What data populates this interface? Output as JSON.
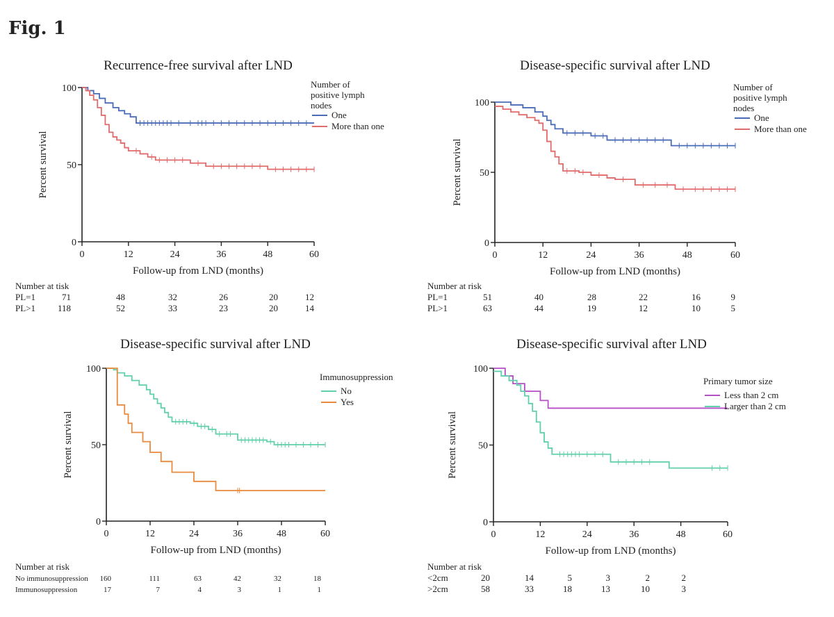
{
  "figure_label": "Fig. 1",
  "chart_data": [
    {
      "type": "line",
      "subtype": "kaplan-meier step",
      "title": "Recurrence-free survival after LND",
      "xlabel": "Follow-up from LND (months)",
      "ylabel": "Percent survival",
      "xlim": [
        0,
        60
      ],
      "ylim": [
        0,
        100
      ],
      "xticks": [
        0,
        12,
        24,
        36,
        48,
        60
      ],
      "yticks": [
        0,
        50,
        100
      ],
      "grid": false,
      "legend": {
        "title": "Number of positive lymph nodes",
        "position": "right"
      },
      "series": [
        {
          "name": "One",
          "color": "#4a6cb8",
          "steps": [
            [
              0,
              100
            ],
            [
              1.5,
              98
            ],
            [
              3,
              96
            ],
            [
              4.5,
              93
            ],
            [
              6,
              90
            ],
            [
              8,
              87
            ],
            [
              9.5,
              85
            ],
            [
              11,
              83
            ],
            [
              12.5,
              81
            ],
            [
              14,
              77
            ],
            [
              60,
              77
            ]
          ],
          "censored": [
            15,
            16,
            17,
            18,
            19,
            20,
            21,
            22,
            23,
            25,
            28,
            30,
            31,
            32,
            34,
            36,
            38,
            40,
            42,
            44,
            46,
            48,
            50,
            52,
            54,
            56,
            58
          ]
        },
        {
          "name": "More than one",
          "color": "#e26a6a",
          "steps": [
            [
              0,
              100
            ],
            [
              1,
              98
            ],
            [
              2,
              95
            ],
            [
              3,
              92
            ],
            [
              4,
              87
            ],
            [
              5,
              82
            ],
            [
              6,
              76
            ],
            [
              7,
              71
            ],
            [
              8,
              68
            ],
            [
              9,
              66
            ],
            [
              10,
              64
            ],
            [
              11,
              61
            ],
            [
              12,
              59
            ],
            [
              15,
              57
            ],
            [
              17,
              55
            ],
            [
              19,
              53
            ],
            [
              28,
              51
            ],
            [
              32,
              49
            ],
            [
              48,
              47
            ],
            [
              60,
              47
            ]
          ],
          "censored": [
            14,
            18,
            20,
            22,
            24,
            26,
            30,
            34,
            36,
            38,
            40,
            42,
            44,
            46,
            50,
            52,
            54,
            56,
            58,
            60
          ]
        }
      ],
      "risk_table": {
        "heading": "Number at tisk",
        "rows": [
          {
            "label": "PL=1",
            "values": [
              "71",
              "48",
              "32",
              "26",
              "20",
              "12"
            ]
          },
          {
            "label": "PL>1",
            "values": [
              "118",
              "52",
              "33",
              "23",
              "20",
              "14"
            ]
          }
        ]
      }
    },
    {
      "type": "line",
      "subtype": "kaplan-meier step",
      "title": "Disease-specific survival after LND",
      "xlabel": "Follow-up from LND (months)",
      "ylabel": "Percent survival",
      "xlim": [
        0,
        60
      ],
      "ylim": [
        0,
        100
      ],
      "xticks": [
        0,
        12,
        24,
        36,
        48,
        60
      ],
      "yticks": [
        0,
        50,
        100
      ],
      "grid": false,
      "legend": {
        "title": "Number of positive lymph nodes",
        "position": "right"
      },
      "series": [
        {
          "name": "One",
          "color": "#4a6cb8",
          "steps": [
            [
              0,
              100
            ],
            [
              4,
              98
            ],
            [
              7,
              96
            ],
            [
              10,
              93
            ],
            [
              12,
              90
            ],
            [
              13,
              87
            ],
            [
              14,
              84
            ],
            [
              15,
              81
            ],
            [
              17,
              78
            ],
            [
              24,
              76
            ],
            [
              28,
              73
            ],
            [
              44,
              69
            ],
            [
              60,
              69
            ]
          ],
          "censored": [
            18,
            20,
            22,
            25,
            27,
            30,
            32,
            34,
            36,
            38,
            40,
            42,
            46,
            48,
            50,
            52,
            54,
            56,
            58,
            60
          ]
        },
        {
          "name": "More than one",
          "color": "#e26a6a",
          "steps": [
            [
              0,
              97
            ],
            [
              2,
              95
            ],
            [
              4,
              93
            ],
            [
              6,
              91
            ],
            [
              8,
              89
            ],
            [
              10,
              87
            ],
            [
              11,
              85
            ],
            [
              12,
              80
            ],
            [
              13,
              72
            ],
            [
              14,
              65
            ],
            [
              15,
              61
            ],
            [
              16,
              56
            ],
            [
              17,
              51
            ],
            [
              21,
              50
            ],
            [
              24,
              48
            ],
            [
              28,
              46
            ],
            [
              30,
              45
            ],
            [
              35,
              41
            ],
            [
              45,
              38
            ],
            [
              60,
              38
            ]
          ],
          "censored": [
            18,
            20,
            22,
            26,
            32,
            37,
            40,
            43,
            47,
            50,
            52,
            54,
            56,
            58,
            60
          ]
        }
      ],
      "risk_table": {
        "heading": "Number at risk",
        "rows": [
          {
            "label": "PL=1",
            "values": [
              "51",
              "40",
              "28",
              "22",
              "16",
              "9"
            ]
          },
          {
            "label": "PL>1",
            "values": [
              "63",
              "44",
              "19",
              "12",
              "10",
              "5"
            ]
          }
        ]
      }
    },
    {
      "type": "line",
      "subtype": "kaplan-meier step",
      "title": "Disease-specific survival after LND",
      "xlabel": "Follow-up from LND (months)",
      "ylabel": "Percent survival",
      "xlim": [
        0,
        60
      ],
      "ylim": [
        0,
        100
      ],
      "xticks": [
        0,
        12,
        24,
        36,
        48,
        60
      ],
      "yticks": [
        0,
        50,
        100
      ],
      "grid": false,
      "legend": {
        "title": "Immunosuppression",
        "position": "right"
      },
      "series": [
        {
          "name": "No",
          "color": "#5fcfac",
          "steps": [
            [
              0,
              100
            ],
            [
              2,
              99
            ],
            [
              3,
              97
            ],
            [
              5,
              95
            ],
            [
              7,
              92
            ],
            [
              9,
              89
            ],
            [
              11,
              86
            ],
            [
              12,
              83
            ],
            [
              13,
              80
            ],
            [
              14,
              77
            ],
            [
              15,
              74
            ],
            [
              16,
              71
            ],
            [
              17,
              68
            ],
            [
              18,
              65
            ],
            [
              23,
              64
            ],
            [
              25,
              62
            ],
            [
              28,
              60
            ],
            [
              30,
              57
            ],
            [
              36,
              53
            ],
            [
              44,
              52
            ],
            [
              46,
              50
            ],
            [
              60,
              50
            ]
          ],
          "censored": [
            19,
            20,
            21,
            22,
            24,
            26,
            27,
            29,
            31,
            33,
            34,
            37,
            38,
            39,
            40,
            41,
            42,
            43,
            45,
            47,
            48,
            49,
            50,
            52,
            54,
            56,
            58,
            60
          ]
        },
        {
          "name": "Yes",
          "color": "#ea8a3c",
          "steps": [
            [
              0,
              100
            ],
            [
              3,
              76
            ],
            [
              5,
              70
            ],
            [
              6,
              64
            ],
            [
              7,
              58
            ],
            [
              10,
              52
            ],
            [
              12,
              45
            ],
            [
              15,
              39
            ],
            [
              18,
              32
            ],
            [
              24,
              26
            ],
            [
              30,
              20
            ],
            [
              60,
              20
            ]
          ],
          "censored": [
            36,
            36.5
          ]
        }
      ],
      "risk_table": {
        "heading": "Number at risk",
        "rows": [
          {
            "label": "No immunosuppression",
            "values": [
              "160",
              "111",
              "63",
              "42",
              "32",
              "18"
            ]
          },
          {
            "label": "Immunosuppression",
            "values": [
              "17",
              "7",
              "4",
              "3",
              "1",
              "1"
            ]
          }
        ]
      }
    },
    {
      "type": "line",
      "subtype": "kaplan-meier step",
      "title": "Disease-specific survival after LND",
      "xlabel": "Follow-up from LND (months)",
      "ylabel": "Percent survival",
      "xlim": [
        0,
        60
      ],
      "ylim": [
        0,
        100
      ],
      "xticks": [
        0,
        12,
        24,
        36,
        48,
        60
      ],
      "yticks": [
        0,
        50,
        100
      ],
      "grid": false,
      "legend": {
        "title": "Primary tumor size",
        "position": "right"
      },
      "series": [
        {
          "name": "Less than 2 cm",
          "color": "#b54fc6",
          "steps": [
            [
              0,
              100
            ],
            [
              3,
              95
            ],
            [
              5,
              90
            ],
            [
              8,
              85
            ],
            [
              12,
              79
            ],
            [
              14,
              74
            ],
            [
              60,
              74
            ]
          ],
          "censored": []
        },
        {
          "name": "Larger than 2 cm",
          "color": "#5fcfac",
          "steps": [
            [
              0,
              98
            ],
            [
              2,
              95
            ],
            [
              4,
              92
            ],
            [
              6,
              89
            ],
            [
              7,
              85
            ],
            [
              8,
              82
            ],
            [
              9,
              77
            ],
            [
              10,
              72
            ],
            [
              11,
              65
            ],
            [
              12,
              58
            ],
            [
              13,
              52
            ],
            [
              14,
              48
            ],
            [
              15,
              44
            ],
            [
              30,
              39
            ],
            [
              45,
              35
            ],
            [
              60,
              35
            ]
          ],
          "censored": [
            17,
            18,
            19,
            20,
            21,
            22,
            24,
            26,
            28,
            32,
            34,
            36,
            38,
            40,
            56,
            58,
            60
          ]
        }
      ],
      "risk_table": {
        "heading": "Number at risk",
        "rows": [
          {
            "label": "<2cm",
            "values": [
              "20",
              "14",
              "5",
              "3",
              "2",
              "2"
            ]
          },
          {
            "label": ">2cm",
            "values": [
              "58",
              "33",
              "18",
              "13",
              "10",
              "3"
            ]
          }
        ]
      }
    }
  ]
}
